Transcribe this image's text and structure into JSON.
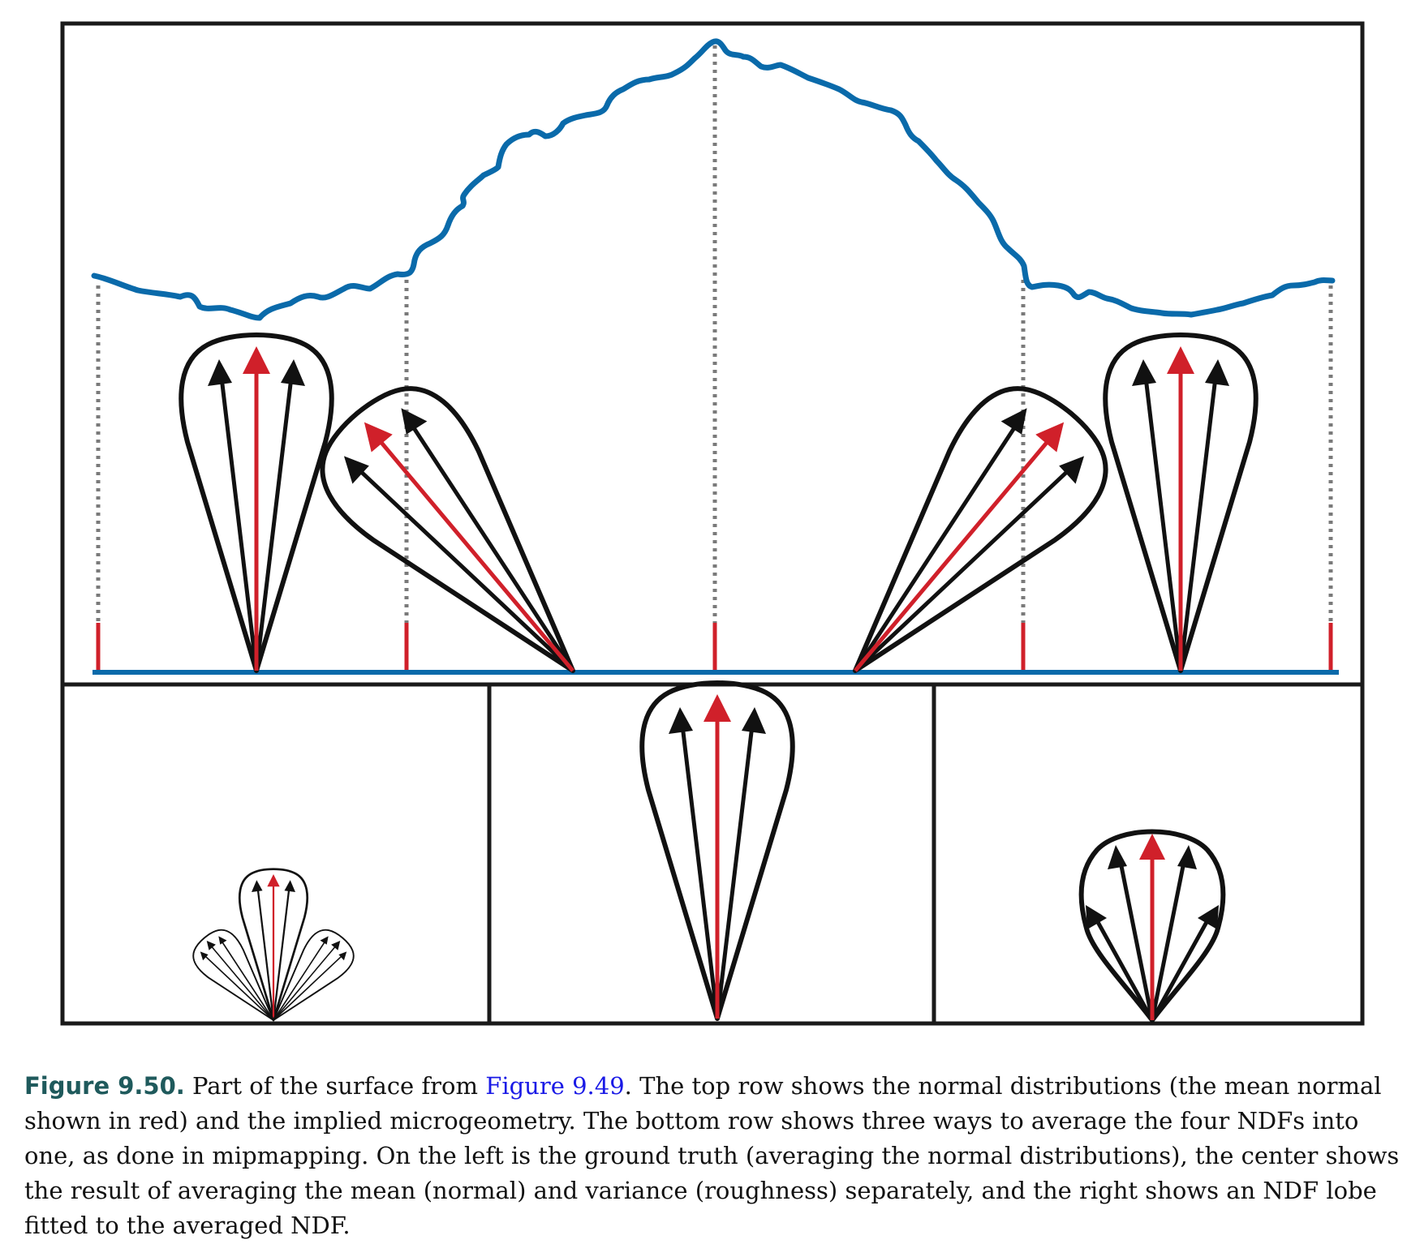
{
  "colors": {
    "surface": "#0a6aaa",
    "mean_normal": "#d0202a",
    "lobe": "#111111",
    "guide": "#7a7a7a",
    "frame": "#1a1a1a",
    "caption_label": "#1f5a5c",
    "link": "#1a1ae6"
  },
  "icons": {
    "lobe": "ndf-lobe-icon",
    "arrow": "normal-arrow-icon"
  },
  "caption": {
    "label": "Figure 9.50.",
    "text_before": " Part of the surface from ",
    "link": "Figure 9.49",
    "text_after": ". The top row shows the normal distributions (the mean normal shown in red) and the implied microgeometry. The bottom row shows three ways to average the four NDFs into one, as done in mipmapping. On the left is the ground truth (averaging the normal distributions), the center shows the result of averaging the mean (normal) and variance (roughness) separately, and the right shows an NDF lobe fitted to the averaged NDF."
  }
}
